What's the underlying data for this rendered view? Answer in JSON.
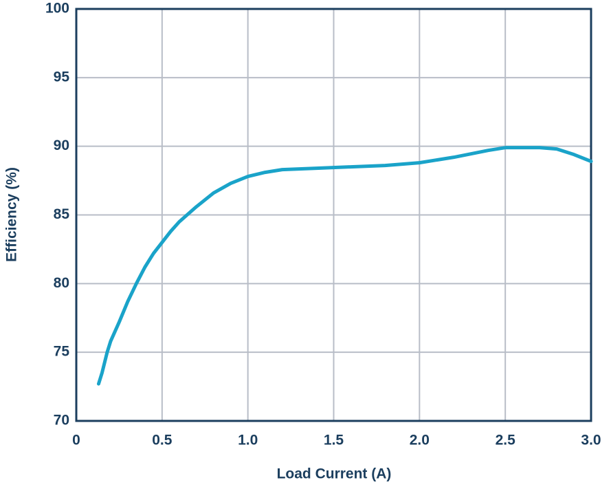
{
  "chart_data": {
    "type": "line",
    "xlabel": "Load Current (A)",
    "ylabel": "Efficiency (%)",
    "xlim": [
      0,
      3
    ],
    "ylim": [
      70,
      100
    ],
    "xticks": [
      0,
      0.5,
      {
        "value": 1,
        "label": "1.0"
      },
      1.5,
      {
        "value": 2,
        "label": "2.0"
      },
      2.5,
      {
        "value": 3,
        "label": "3.0"
      }
    ],
    "yticks": [
      70,
      75,
      80,
      85,
      90,
      95,
      100
    ],
    "grid": true,
    "series": [
      {
        "color": "#1aa3c9",
        "x": [
          0.13,
          0.15,
          0.18,
          0.2,
          0.25,
          0.3,
          0.35,
          0.4,
          0.45,
          0.5,
          0.55,
          0.6,
          0.7,
          0.8,
          0.9,
          1.0,
          1.1,
          1.2,
          1.4,
          1.6,
          1.8,
          2.0,
          2.2,
          2.4,
          2.5,
          2.6,
          2.7,
          2.8,
          2.9,
          3.0
        ],
        "values": [
          72.7,
          73.5,
          75.0,
          75.8,
          77.2,
          78.7,
          80.0,
          81.2,
          82.2,
          83.0,
          83.8,
          84.5,
          85.6,
          86.6,
          87.3,
          87.8,
          88.1,
          88.3,
          88.4,
          88.5,
          88.6,
          88.8,
          89.2,
          89.7,
          89.9,
          89.9,
          89.9,
          89.8,
          89.4,
          88.9
        ]
      }
    ]
  }
}
